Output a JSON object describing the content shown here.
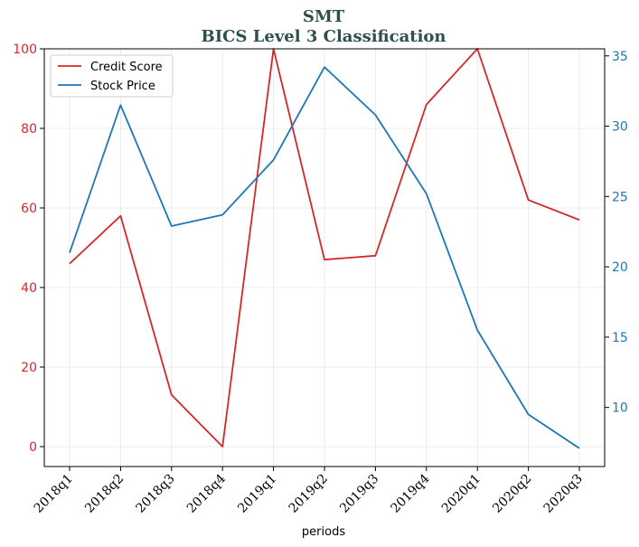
{
  "chart_data": {
    "type": "line",
    "title": "SMT",
    "subtitle": "BICS Level 3 Classification",
    "xlabel": "periods",
    "ylabel_left": "",
    "ylabel_right": "",
    "categories": [
      "2018q1",
      "2018q2",
      "2018q3",
      "2018q4",
      "2019q1",
      "2019q2",
      "2019q3",
      "2019q4",
      "2020q1",
      "2020q2",
      "2020q3"
    ],
    "series": [
      {
        "name": "Credit Score",
        "axis": "left",
        "color": "#d62728",
        "values": [
          46,
          58,
          13,
          0,
          100,
          47,
          48,
          86,
          100,
          62,
          57
        ]
      },
      {
        "name": "Stock Price",
        "axis": "right",
        "color": "#1f77b4",
        "values": [
          21.0,
          31.5,
          22.9,
          23.7,
          27.6,
          34.2,
          30.8,
          25.2,
          15.5,
          9.5,
          7.1
        ]
      }
    ],
    "ylim_left": [
      -5,
      100
    ],
    "yticks_left": [
      0,
      20,
      40,
      60,
      80,
      100
    ],
    "ylim_right": [
      5.8,
      35.5
    ],
    "yticks_right": [
      10,
      15,
      20,
      25,
      30,
      35
    ],
    "grid": true,
    "legend_position": "top-left"
  }
}
